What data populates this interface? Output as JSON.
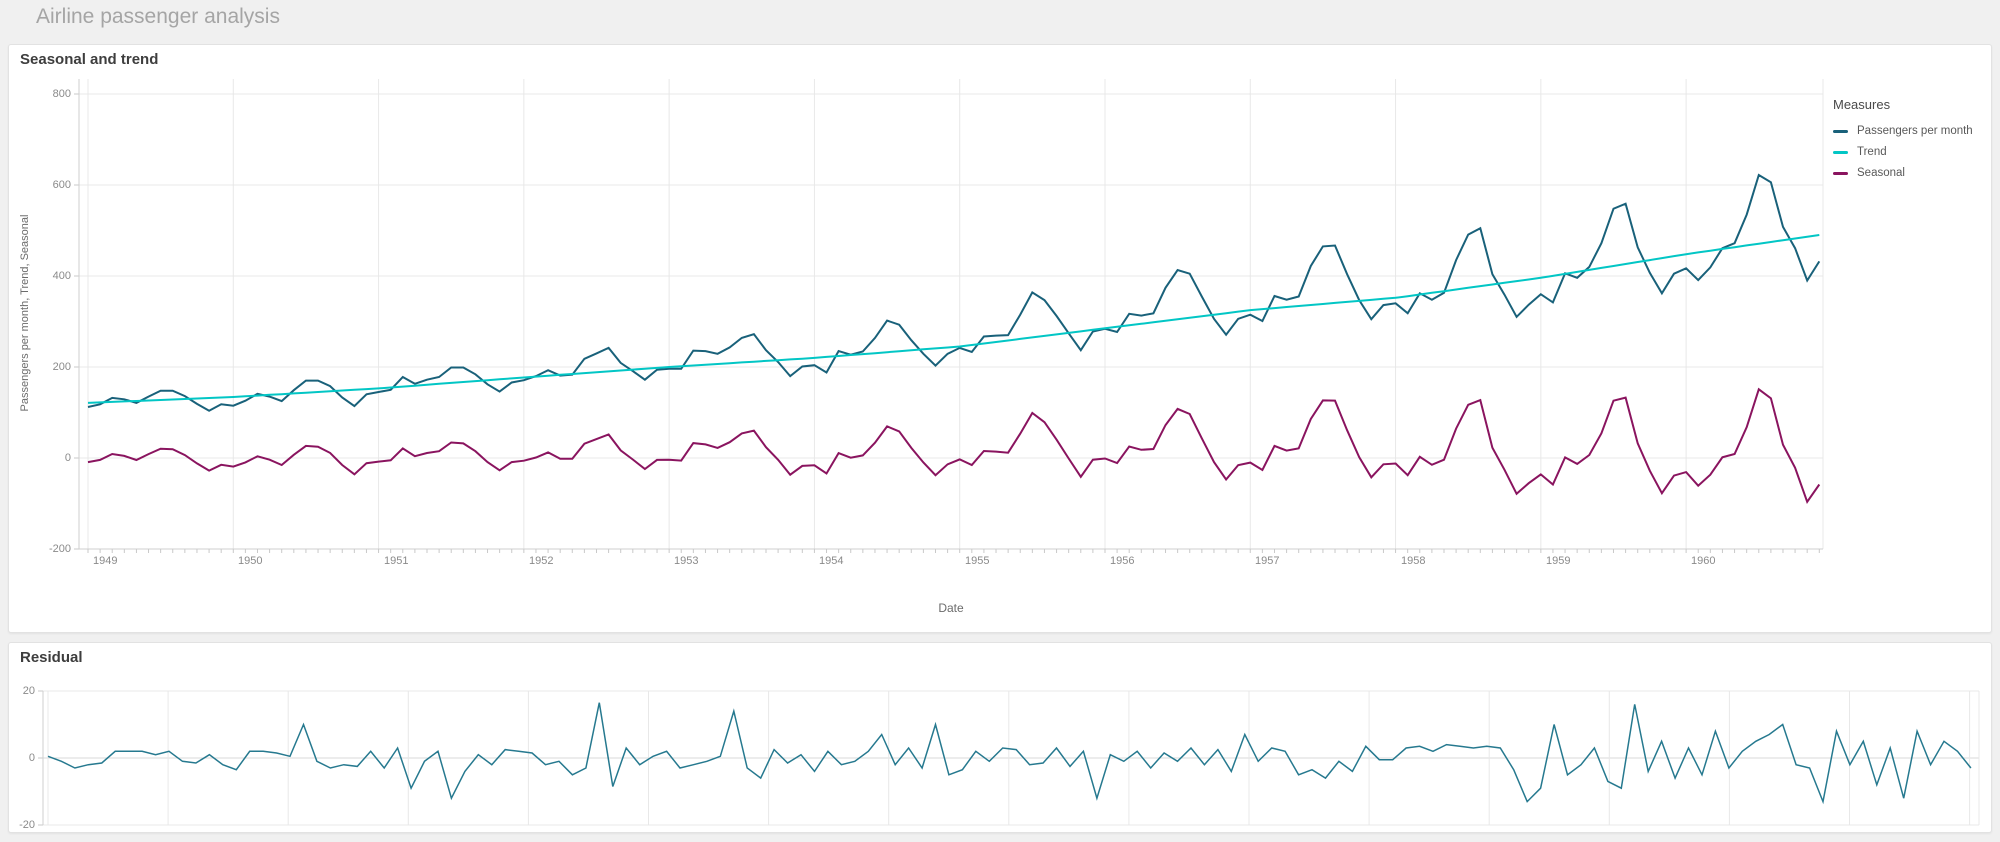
{
  "page": {
    "title": "Airline passenger analysis"
  },
  "colors": {
    "passengers": "#19617a",
    "trend": "#02c6c5",
    "seasonal": "#8a145f",
    "residual": "#26798f",
    "gridline": "#e8e8e8",
    "axis_line": "#cfcfcf",
    "tick_mark": "#c9c9c9"
  },
  "chart_data": [
    {
      "type": "line",
      "title": "Seasonal and trend",
      "x_label": "Date",
      "y_label": "Passengers per month, Trend, Seasonal",
      "x_start": "1949-01",
      "x_end": "1960-12",
      "points_per_series": 144,
      "x_tick_labels": [
        "1949",
        "1950",
        "1951",
        "1952",
        "1953",
        "1954",
        "1955",
        "1956",
        "1957",
        "1958",
        "1959",
        "1960"
      ],
      "y_tick_labels": [
        "800",
        "600",
        "400",
        "200",
        "0",
        "-200"
      ],
      "y_ticks": [
        800,
        600,
        400,
        200,
        0,
        -200
      ],
      "ylim": [
        -200,
        800
      ],
      "grid": true,
      "legend_position": "right",
      "legend_title": "Measures",
      "series": [
        {
          "name": "Passengers per month",
          "color": "#19617a",
          "values": [
            112,
            118,
            132,
            129,
            121,
            135,
            148,
            148,
            136,
            119,
            104,
            118,
            115,
            126,
            141,
            135,
            125,
            149,
            170,
            170,
            158,
            133,
            114,
            140,
            145,
            150,
            178,
            163,
            172,
            178,
            199,
            199,
            184,
            162,
            146,
            166,
            171,
            180,
            193,
            181,
            183,
            218,
            230,
            242,
            209,
            191,
            172,
            194,
            196,
            196,
            236,
            235,
            229,
            243,
            264,
            272,
            237,
            211,
            180,
            201,
            204,
            188,
            235,
            227,
            234,
            264,
            302,
            293,
            259,
            229,
            203,
            229,
            242,
            233,
            267,
            269,
            270,
            315,
            364,
            347,
            312,
            274,
            237,
            278,
            284,
            277,
            317,
            313,
            318,
            374,
            413,
            405,
            355,
            306,
            271,
            306,
            315,
            301,
            356,
            348,
            355,
            422,
            465,
            467,
            404,
            347,
            305,
            336,
            340,
            318,
            362,
            348,
            363,
            435,
            491,
            505,
            404,
            359,
            310,
            337,
            360,
            342,
            406,
            396,
            420,
            472,
            548,
            559,
            463,
            407,
            362,
            405,
            417,
            391,
            419,
            461,
            472,
            535,
            622,
            606,
            508,
            461,
            390,
            432
          ]
        },
        {
          "name": "Trend",
          "color": "#02c6c5",
          "values": [
            121.0,
            122.1,
            123.2,
            124.3,
            125.3,
            126.4,
            127.5,
            128.6,
            129.7,
            130.8,
            131.8,
            132.9,
            134.0,
            135.6,
            137.2,
            138.8,
            140.3,
            141.9,
            143.5,
            145.1,
            146.7,
            148.3,
            149.8,
            151.4,
            153.0,
            155.0,
            157.0,
            159.0,
            161.0,
            163.0,
            165.0,
            167.0,
            169.0,
            171.0,
            173.0,
            175.0,
            177.0,
            178.9,
            180.8,
            182.8,
            184.7,
            186.6,
            188.5,
            190.4,
            192.3,
            194.3,
            196.2,
            198.1,
            200.0,
            201.7,
            203.3,
            205.0,
            206.7,
            208.3,
            210.0,
            211.7,
            213.3,
            215.0,
            216.7,
            218.3,
            220.0,
            222.1,
            224.2,
            226.3,
            228.3,
            230.4,
            232.5,
            234.6,
            236.7,
            238.8,
            240.8,
            242.9,
            245.0,
            248.3,
            251.7,
            255.0,
            258.3,
            261.7,
            265.0,
            268.3,
            271.7,
            275.0,
            278.3,
            281.7,
            285.0,
            288.3,
            291.7,
            295.0,
            298.3,
            301.7,
            305.0,
            308.3,
            311.7,
            315.0,
            318.3,
            321.7,
            325.0,
            327.3,
            329.5,
            331.8,
            334.0,
            336.3,
            338.5,
            340.8,
            343.0,
            345.3,
            347.5,
            349.8,
            352.0,
            355.7,
            359.3,
            363.0,
            366.7,
            370.3,
            374.0,
            377.7,
            381.3,
            385.0,
            388.7,
            392.3,
            396.0,
            400.3,
            404.7,
            409.0,
            413.3,
            417.7,
            422.0,
            426.3,
            430.7,
            435.0,
            439.3,
            443.7,
            448.0,
            451.8,
            455.7,
            459.5,
            463.3,
            467.2,
            471.0,
            474.8,
            478.7,
            482.5,
            486.3,
            490.2
          ]
        },
        {
          "name": "Seasonal",
          "color": "#8a145f",
          "values": [
            -9.0,
            -4.1,
            8.8,
            4.7,
            -4.3,
            8.6,
            20.5,
            19.4,
            6.3,
            -11.8,
            -27.8,
            -14.9,
            -19.0,
            -9.6,
            3.8,
            -3.8,
            -15.3,
            7.1,
            26.5,
            24.9,
            11.3,
            -15.3,
            -35.8,
            -11.4,
            -8.0,
            -5.0,
            21.0,
            4.0,
            11.0,
            15.0,
            34.0,
            32.0,
            15.0,
            -9.0,
            -27.0,
            -9.0,
            -6.0,
            1.1,
            12.2,
            -1.8,
            -1.7,
            31.4,
            41.5,
            51.6,
            16.7,
            -3.3,
            -24.2,
            -4.1,
            -4.0,
            -5.7,
            32.7,
            30.0,
            22.3,
            34.7,
            54.0,
            60.3,
            23.7,
            -4.0,
            -36.7,
            -17.3,
            -16.0,
            -34.1,
            10.8,
            0.7,
            5.7,
            33.6,
            69.5,
            58.4,
            22.3,
            -9.8,
            -37.8,
            -13.9,
            -3.0,
            -15.3,
            15.3,
            14.0,
            11.7,
            53.3,
            99.0,
            78.7,
            40.3,
            -1.0,
            -41.3,
            -3.7,
            -1.0,
            -11.3,
            25.3,
            18.0,
            19.7,
            72.3,
            108.0,
            96.7,
            43.3,
            -9.0,
            -47.3,
            -15.7,
            -10.0,
            -26.3,
            26.5,
            16.2,
            21.0,
            85.7,
            126.5,
            126.2,
            61.0,
            1.7,
            -42.5,
            -13.8,
            -12.0,
            -37.7,
            2.7,
            -15.0,
            -3.7,
            64.7,
            117.0,
            127.3,
            22.7,
            -26.0,
            -78.7,
            -55.3,
            -36.0,
            -58.3,
            1.3,
            -13.0,
            6.7,
            54.3,
            126.0,
            132.7,
            32.3,
            -28.0,
            -77.3,
            -38.7,
            -31.0,
            -60.8,
            -36.7,
            1.5,
            8.7,
            67.8,
            151.0,
            131.2,
            29.3,
            -21.5,
            -96.3,
            -58.2
          ]
        }
      ]
    },
    {
      "type": "line",
      "title": "Residual",
      "x_start": "1949-01",
      "x_end": "1960-12",
      "points_per_series": 144,
      "y_tick_labels": [
        "20",
        "0",
        "-20"
      ],
      "y_ticks": [
        20,
        0,
        -20
      ],
      "ylim": [
        -20,
        20
      ],
      "grid": true,
      "series": [
        {
          "name": "Residual",
          "color": "#26798f",
          "values": [
            0.5,
            -1,
            -3,
            -2,
            -1.5,
            2,
            2,
            2,
            1,
            2,
            -1,
            -1.5,
            1,
            -2,
            -3.5,
            2,
            2,
            1.5,
            0.5,
            10,
            -1,
            -3,
            -2,
            -2.5,
            2,
            -3,
            3,
            -9,
            -1,
            2,
            -12,
            -4,
            1,
            -2,
            2.5,
            2,
            1.5,
            -2,
            -1,
            -5,
            -3,
            16.5,
            -8.5,
            3,
            -2,
            0.5,
            2,
            -3,
            -2,
            -1,
            0.5,
            14,
            -3,
            -6,
            2.5,
            -1.5,
            1,
            -4,
            2,
            -2,
            -1,
            2,
            7,
            -2,
            3,
            -3,
            10,
            -5,
            -3.5,
            2,
            -1,
            3,
            2.5,
            -2,
            -1.5,
            3,
            -2.5,
            2,
            -12,
            1,
            -1,
            2,
            -3,
            1.5,
            -1,
            3,
            -2,
            2.5,
            -4,
            7,
            -1,
            3,
            2,
            -5,
            -3.5,
            -6,
            -1,
            -4,
            3.5,
            -0.5,
            -0.5,
            3,
            3.5,
            2,
            4,
            3.5,
            3,
            3.5,
            3,
            -3.5,
            -13,
            -9,
            10,
            -5,
            -2,
            3,
            -7,
            -9,
            16,
            -4,
            5,
            -6,
            3,
            -5,
            8,
            -3,
            2,
            5,
            7,
            10,
            -2,
            -3,
            -13,
            8,
            -2,
            5,
            -8,
            3,
            -12,
            8,
            -2,
            5,
            2,
            -3
          ]
        }
      ]
    }
  ]
}
